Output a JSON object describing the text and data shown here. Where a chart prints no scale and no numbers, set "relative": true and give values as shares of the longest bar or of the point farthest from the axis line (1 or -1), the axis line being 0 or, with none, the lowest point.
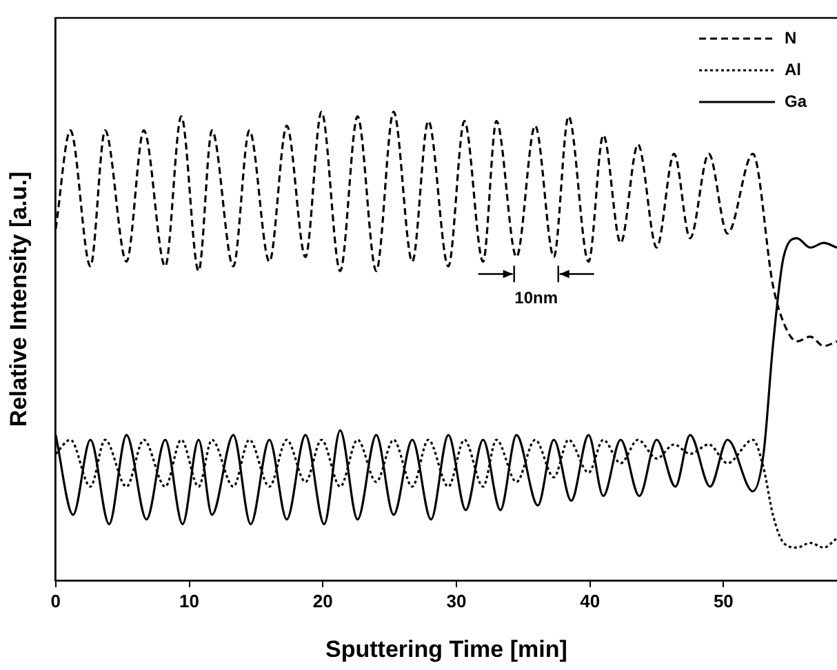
{
  "chart_data": {
    "type": "line",
    "xlabel": "Sputtering Time [min]",
    "ylabel": "Relative Intensity [a.u.]",
    "relative": true,
    "xlim": [
      0,
      58.5
    ],
    "xticks": [
      0,
      10,
      20,
      30,
      40,
      50
    ],
    "grid": false,
    "legend": "top right",
    "marker": "none",
    "annotations": [
      "10nm"
    ],
    "series": [
      {
        "name": "N",
        "color": "#000000",
        "line_style": "dashed",
        "x": [
          0,
          1.1,
          2.6,
          3.7,
          5.3,
          6.6,
          8.2,
          9.4,
          10.7,
          11.7,
          13.3,
          14.5,
          16.0,
          17.3,
          18.7,
          19.9,
          21.3,
          22.6,
          24.0,
          25.3,
          26.7,
          27.9,
          29.4,
          30.6,
          32.0,
          33.0,
          34.5,
          35.9,
          37.3,
          38.4,
          39.9,
          41.0,
          42.3,
          43.6,
          45.0,
          46.3,
          47.5,
          48.9,
          50.3,
          52.2,
          53.7,
          54.5,
          55.5,
          56.5,
          57.5,
          58.5
        ],
        "values": [
          0.75,
          0.96,
          0.67,
          0.96,
          0.68,
          0.96,
          0.67,
          0.99,
          0.66,
          0.96,
          0.67,
          0.96,
          0.68,
          0.97,
          0.69,
          1.0,
          0.66,
          0.99,
          0.66,
          1.0,
          0.68,
          0.98,
          0.67,
          0.98,
          0.68,
          0.98,
          0.69,
          0.97,
          0.69,
          0.99,
          0.68,
          0.95,
          0.72,
          0.93,
          0.71,
          0.91,
          0.73,
          0.91,
          0.74,
          0.91,
          0.63,
          0.55,
          0.51,
          0.52,
          0.5,
          0.51
        ]
      },
      {
        "name": "Al",
        "color": "#000000",
        "line_style": "dotted",
        "x": [
          0,
          1.1,
          2.6,
          3.7,
          5.3,
          6.6,
          8.2,
          9.4,
          10.7,
          11.7,
          13.3,
          14.5,
          16.0,
          17.3,
          18.7,
          19.9,
          21.3,
          22.6,
          24.0,
          25.3,
          26.7,
          27.9,
          29.4,
          30.6,
          32.0,
          33.0,
          34.5,
          35.9,
          37.3,
          38.4,
          39.9,
          41.0,
          42.3,
          43.6,
          45.0,
          46.3,
          47.5,
          48.9,
          50.3,
          52.2,
          53.0,
          53.7,
          54.5,
          55.5,
          56.5,
          57.5,
          58.5
        ],
        "values": [
          0.27,
          0.3,
          0.2,
          0.3,
          0.2,
          0.3,
          0.2,
          0.3,
          0.2,
          0.3,
          0.2,
          0.3,
          0.2,
          0.3,
          0.21,
          0.3,
          0.2,
          0.3,
          0.21,
          0.3,
          0.2,
          0.3,
          0.2,
          0.3,
          0.2,
          0.3,
          0.21,
          0.3,
          0.22,
          0.3,
          0.23,
          0.3,
          0.25,
          0.3,
          0.26,
          0.29,
          0.27,
          0.29,
          0.25,
          0.3,
          0.24,
          0.14,
          0.08,
          0.07,
          0.08,
          0.07,
          0.09
        ]
      },
      {
        "name": "Ga",
        "color": "#000000",
        "line_style": "solid",
        "x": [
          0,
          1.3,
          2.6,
          4.0,
          5.3,
          6.8,
          8.2,
          9.5,
          10.7,
          11.7,
          13.3,
          14.6,
          16.0,
          17.3,
          18.7,
          20.1,
          21.3,
          22.6,
          24.0,
          25.3,
          26.7,
          28.1,
          29.4,
          30.7,
          32.0,
          33.3,
          34.5,
          36.1,
          37.3,
          38.6,
          39.9,
          41.0,
          42.3,
          43.7,
          45.0,
          46.4,
          47.5,
          49.0,
          50.3,
          52.2,
          53.0,
          53.7,
          54.5,
          55.5,
          56.5,
          57.5,
          58.5
        ],
        "values": [
          0.31,
          0.14,
          0.3,
          0.12,
          0.31,
          0.13,
          0.3,
          0.12,
          0.3,
          0.14,
          0.31,
          0.12,
          0.3,
          0.13,
          0.31,
          0.12,
          0.32,
          0.13,
          0.31,
          0.14,
          0.3,
          0.13,
          0.31,
          0.15,
          0.3,
          0.15,
          0.31,
          0.16,
          0.3,
          0.17,
          0.31,
          0.18,
          0.3,
          0.18,
          0.3,
          0.2,
          0.31,
          0.2,
          0.3,
          0.19,
          0.27,
          0.5,
          0.69,
          0.73,
          0.71,
          0.72,
          0.71
        ]
      }
    ]
  }
}
